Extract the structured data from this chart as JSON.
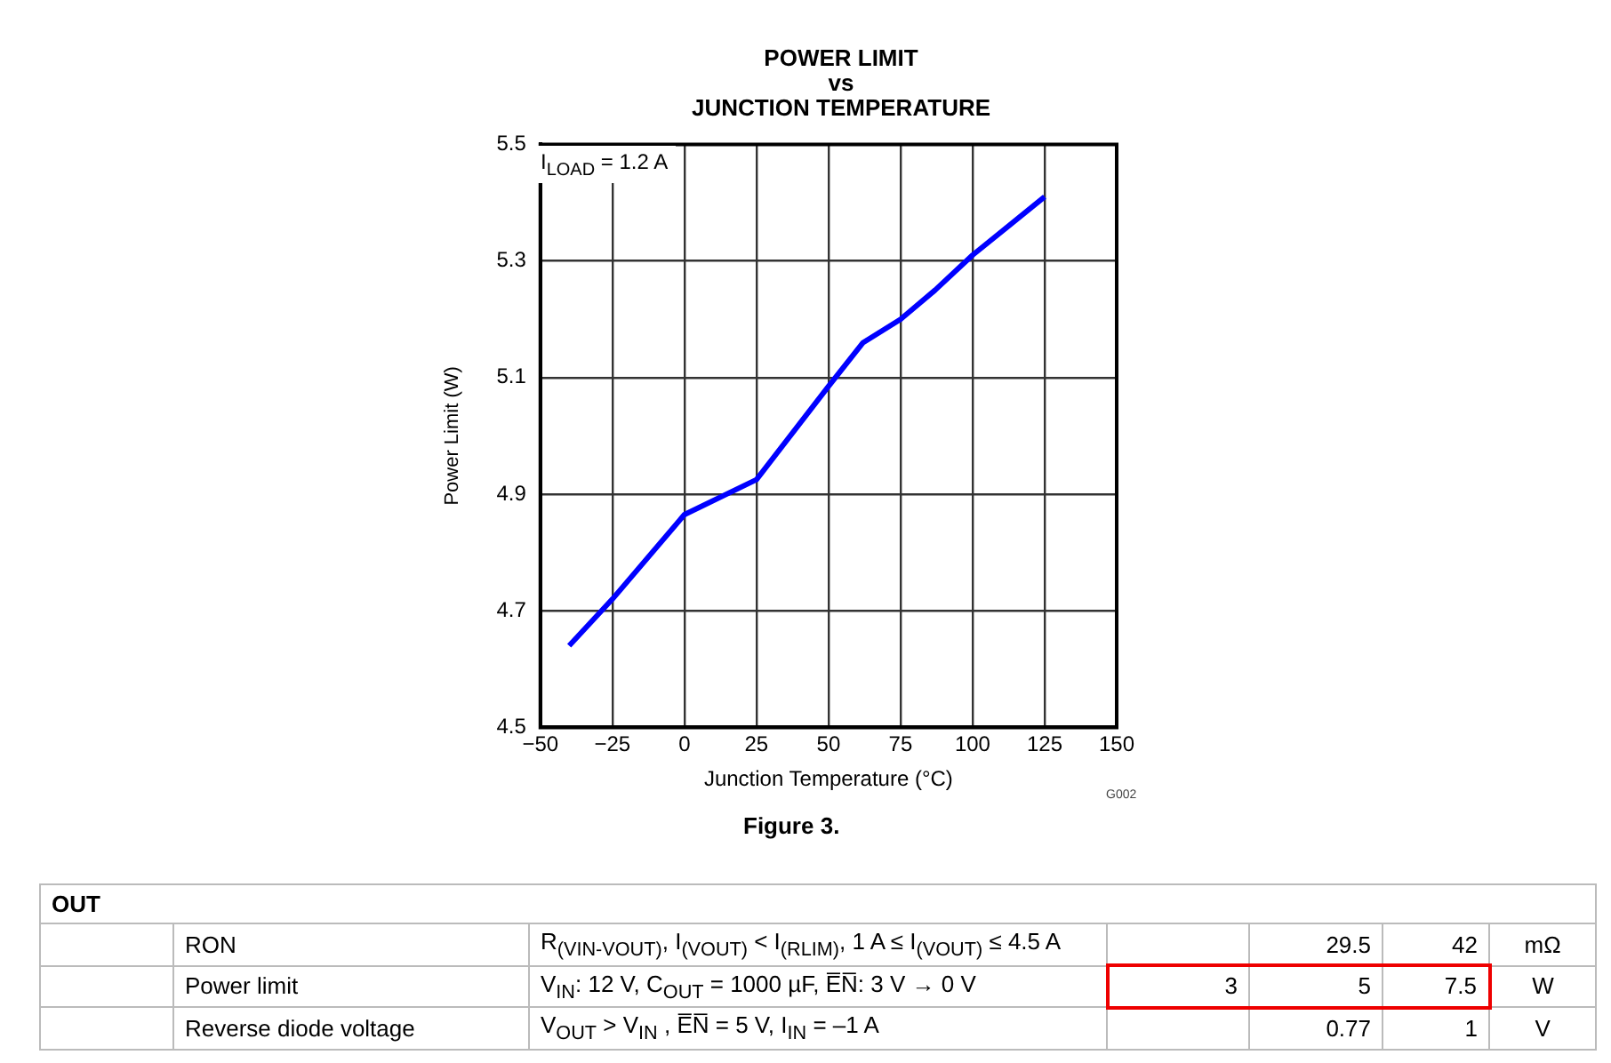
{
  "chart_data": {
    "type": "line",
    "title": "POWER LIMIT\nvs\nJUNCTION TEMPERATURE",
    "xlabel": "Junction Temperature (°C)",
    "ylabel": "Power Limit (W)",
    "x": [
      -40,
      -25,
      0,
      25,
      50,
      62,
      75,
      87,
      100,
      125
    ],
    "series": [
      {
        "color": "#0000ff",
        "values": [
          4.64,
          4.72,
          4.865,
          4.925,
          5.085,
          5.16,
          5.2,
          5.25,
          5.31,
          5.41
        ]
      }
    ],
    "xlim": [
      -50,
      150
    ],
    "xticks": [
      -50,
      -25,
      0,
      25,
      50,
      75,
      100,
      125,
      150
    ],
    "ylim": [
      4.5,
      5.5
    ],
    "yticks": [
      4.5,
      4.7,
      4.9,
      5.1,
      5.3,
      5.5
    ],
    "grid": true,
    "legend": false,
    "annotations": [
      "I$_{LOAD}$ = 1.2 A",
      "G002",
      "Figure 3.",
      "OUT",
      "RON",
      "R$_{(VIN-VOUT)}$, I$_{(VOUT)}$ < I$_{(RLIM)}$, 1 A ≤ I$_{(VOUT)}$ ≤ 4.5 A",
      "29.5",
      "42",
      "mΩ",
      "Power limit",
      "V$_{IN}$: 12 V, C$_{OUT}$ = 1000 µF, E̅N̅: 3 V → 0 V",
      "3",
      "5",
      "7.5",
      "W",
      "Reverse diode voltage",
      "V$_{OUT}$ > V$_{IN}$ , E̅N̅ = 5 V, I$_{IN}$ = –1 A",
      "0.77",
      "1",
      "V"
    ]
  }
}
